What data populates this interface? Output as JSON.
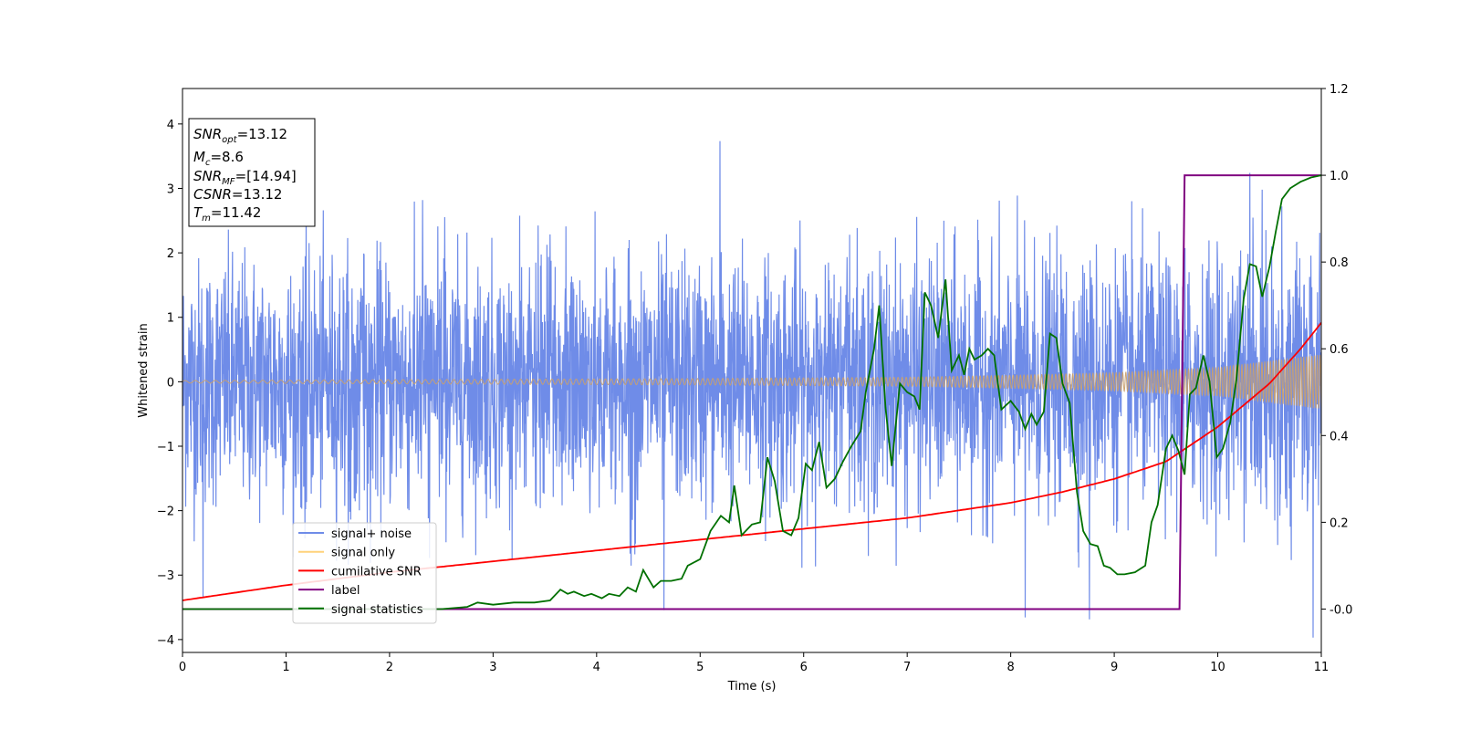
{
  "chart_data": {
    "type": "line",
    "xlabel": "Time (s)",
    "ylabel": "Whitened strain",
    "xlim": [
      0,
      11
    ],
    "ylim_left": [
      -4.2,
      4.55
    ],
    "ylim_right": [
      -0.1,
      1.2
    ],
    "x_ticks": [
      0,
      1,
      2,
      3,
      4,
      5,
      6,
      7,
      8,
      9,
      10,
      11
    ],
    "y_ticks_left": [
      -4,
      -3,
      -2,
      -1,
      0,
      1,
      2,
      3,
      4
    ],
    "y_ticks_right": [
      "-0.0",
      "0.2",
      "0.4",
      "0.6",
      "0.8",
      "1.0",
      "1.2"
    ],
    "y_ticks_right_values": [
      0.0,
      0.2,
      0.4,
      0.6,
      0.8,
      1.0,
      1.2
    ],
    "annotation": {
      "lines": [
        {
          "base": "SNR",
          "sub": "opt",
          "rest": "=13.12"
        },
        {
          "base": "M",
          "sub": "c",
          "rest": "=8.6"
        },
        {
          "base": "SNR",
          "sub": "MF",
          "rest": "=[14.94]"
        },
        {
          "base": "CSNR",
          "sub": "",
          "rest": "=13.12"
        },
        {
          "base": "T",
          "sub": "m",
          "rest": "=11.42"
        }
      ],
      "placement": "top-left"
    },
    "legend": {
      "placement": "lower-left",
      "entries": [
        {
          "label": "signal+ noise",
          "color": "#6f8ce8"
        },
        {
          "label": "signal only",
          "color": "#ffd27a"
        },
        {
          "label": "cumilative SNR",
          "color": "#ff0000"
        },
        {
          "label": "label",
          "color": "#800080"
        },
        {
          "label": "signal statistics",
          "color": "#007000"
        }
      ]
    },
    "series": [
      {
        "name": "signal+ noise",
        "axis": "left",
        "color": "#6f8ce8",
        "style": "dense noise band, roughly ±2.2 with spikes up to 3.8 and down to -3.8",
        "noise_sigma": 0.95,
        "spikes": [
          [
            0.2,
            -3.35
          ],
          [
            4.65,
            -3.5
          ],
          [
            5.19,
            3.78
          ],
          [
            8.14,
            -3.6
          ],
          [
            8.76,
            -3.8
          ],
          [
            10.31,
            3.25
          ],
          [
            10.92,
            -3.6
          ]
        ]
      },
      {
        "name": "signal only",
        "axis": "left",
        "color": "#ffd27a",
        "style": "chirp, amplitude grows with time",
        "envelope": [
          [
            0,
            0.02
          ],
          [
            5,
            0.05
          ],
          [
            7,
            0.07
          ],
          [
            8,
            0.1
          ],
          [
            9,
            0.14
          ],
          [
            10,
            0.22
          ],
          [
            11,
            0.42
          ]
        ]
      },
      {
        "name": "cumilative SNR",
        "axis": "right",
        "color": "#ff0000",
        "points": [
          [
            0,
            0.02
          ],
          [
            1,
            0.055
          ],
          [
            2,
            0.085
          ],
          [
            3,
            0.11
          ],
          [
            4,
            0.135
          ],
          [
            5,
            0.16
          ],
          [
            6,
            0.185
          ],
          [
            7,
            0.21
          ],
          [
            8,
            0.245
          ],
          [
            8.5,
            0.27
          ],
          [
            9,
            0.3
          ],
          [
            9.5,
            0.34
          ],
          [
            10,
            0.42
          ],
          [
            10.5,
            0.52
          ],
          [
            10.8,
            0.6
          ],
          [
            11,
            0.66
          ]
        ]
      },
      {
        "name": "label",
        "axis": "right",
        "color": "#800080",
        "points": [
          [
            0,
            0.0
          ],
          [
            9.63,
            0.0
          ],
          [
            9.68,
            1.0
          ],
          [
            11,
            1.0
          ]
        ]
      },
      {
        "name": "signal statistics",
        "axis": "right",
        "color": "#007000",
        "points": [
          [
            0,
            0.0
          ],
          [
            2.5,
            0.0
          ],
          [
            2.75,
            0.005
          ],
          [
            2.85,
            0.015
          ],
          [
            3.0,
            0.01
          ],
          [
            3.2,
            0.015
          ],
          [
            3.4,
            0.015
          ],
          [
            3.55,
            0.02
          ],
          [
            3.65,
            0.045
          ],
          [
            3.72,
            0.035
          ],
          [
            3.78,
            0.04
          ],
          [
            3.88,
            0.03
          ],
          [
            3.95,
            0.035
          ],
          [
            4.05,
            0.025
          ],
          [
            4.12,
            0.035
          ],
          [
            4.22,
            0.03
          ],
          [
            4.3,
            0.05
          ],
          [
            4.38,
            0.04
          ],
          [
            4.45,
            0.09
          ],
          [
            4.55,
            0.05
          ],
          [
            4.62,
            0.065
          ],
          [
            4.72,
            0.065
          ],
          [
            4.82,
            0.07
          ],
          [
            4.88,
            0.1
          ],
          [
            5.0,
            0.115
          ],
          [
            5.1,
            0.18
          ],
          [
            5.2,
            0.215
          ],
          [
            5.28,
            0.2
          ],
          [
            5.33,
            0.285
          ],
          [
            5.4,
            0.17
          ],
          [
            5.5,
            0.195
          ],
          [
            5.58,
            0.2
          ],
          [
            5.65,
            0.35
          ],
          [
            5.72,
            0.295
          ],
          [
            5.8,
            0.18
          ],
          [
            5.88,
            0.17
          ],
          [
            5.95,
            0.21
          ],
          [
            6.02,
            0.335
          ],
          [
            6.08,
            0.32
          ],
          [
            6.15,
            0.385
          ],
          [
            6.22,
            0.28
          ],
          [
            6.3,
            0.3
          ],
          [
            6.38,
            0.34
          ],
          [
            6.46,
            0.375
          ],
          [
            6.55,
            0.41
          ],
          [
            6.6,
            0.5
          ],
          [
            6.68,
            0.6
          ],
          [
            6.73,
            0.7
          ],
          [
            6.79,
            0.465
          ],
          [
            6.85,
            0.33
          ],
          [
            6.93,
            0.52
          ],
          [
            7.0,
            0.5
          ],
          [
            7.07,
            0.49
          ],
          [
            7.12,
            0.46
          ],
          [
            7.17,
            0.73
          ],
          [
            7.23,
            0.7
          ],
          [
            7.3,
            0.625
          ],
          [
            7.37,
            0.76
          ],
          [
            7.43,
            0.55
          ],
          [
            7.5,
            0.585
          ],
          [
            7.55,
            0.54
          ],
          [
            7.6,
            0.6
          ],
          [
            7.65,
            0.575
          ],
          [
            7.72,
            0.585
          ],
          [
            7.78,
            0.6
          ],
          [
            7.84,
            0.585
          ],
          [
            7.91,
            0.46
          ],
          [
            8.0,
            0.48
          ],
          [
            8.08,
            0.455
          ],
          [
            8.14,
            0.415
          ],
          [
            8.2,
            0.45
          ],
          [
            8.25,
            0.425
          ],
          [
            8.32,
            0.455
          ],
          [
            8.38,
            0.635
          ],
          [
            8.44,
            0.625
          ],
          [
            8.5,
            0.52
          ],
          [
            8.57,
            0.475
          ],
          [
            8.64,
            0.27
          ],
          [
            8.7,
            0.18
          ],
          [
            8.77,
            0.15
          ],
          [
            8.84,
            0.145
          ],
          [
            8.9,
            0.1
          ],
          [
            8.96,
            0.095
          ],
          [
            9.03,
            0.08
          ],
          [
            9.1,
            0.08
          ],
          [
            9.2,
            0.085
          ],
          [
            9.3,
            0.1
          ],
          [
            9.36,
            0.2
          ],
          [
            9.42,
            0.24
          ],
          [
            9.5,
            0.37
          ],
          [
            9.56,
            0.4
          ],
          [
            9.62,
            0.365
          ],
          [
            9.68,
            0.31
          ],
          [
            9.73,
            0.495
          ],
          [
            9.79,
            0.51
          ],
          [
            9.86,
            0.585
          ],
          [
            9.92,
            0.525
          ],
          [
            9.99,
            0.35
          ],
          [
            10.05,
            0.37
          ],
          [
            10.12,
            0.43
          ],
          [
            10.18,
            0.53
          ],
          [
            10.25,
            0.715
          ],
          [
            10.31,
            0.795
          ],
          [
            10.37,
            0.79
          ],
          [
            10.43,
            0.72
          ],
          [
            10.5,
            0.79
          ],
          [
            10.56,
            0.87
          ],
          [
            10.62,
            0.945
          ],
          [
            10.7,
            0.97
          ],
          [
            10.8,
            0.985
          ],
          [
            10.9,
            0.995
          ],
          [
            11.0,
            1.0
          ]
        ]
      }
    ]
  }
}
